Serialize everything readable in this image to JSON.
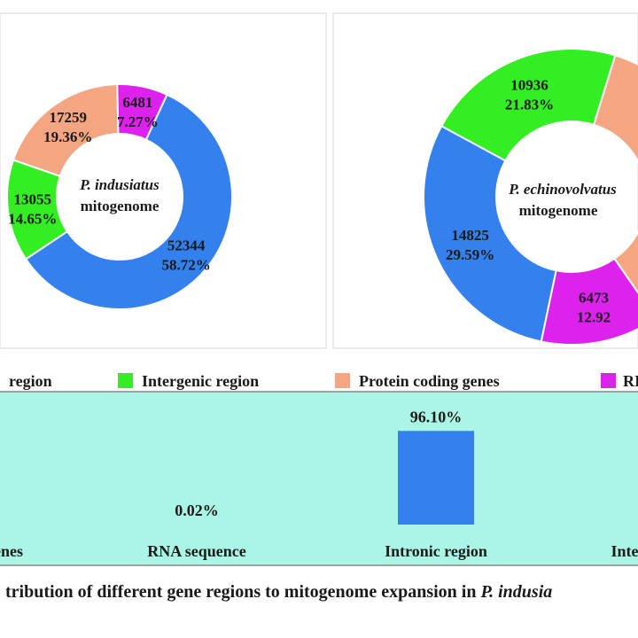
{
  "chart_data": [
    {
      "type": "pie",
      "variant": "donut",
      "center_title": "P. indusiatus",
      "center_subtitle": "mitogenome",
      "slices": [
        {
          "label": "Intergenic region",
          "value": 13055,
          "percent_label": "14.65%",
          "color": "#33ee22"
        },
        {
          "label": "Protein coding genes",
          "value": 17259,
          "percent_label": "19.36%",
          "color": "#f4a582"
        },
        {
          "label": "RNA sequence",
          "value": 6481,
          "percent_label": "7.27%",
          "color": "#dd22ee"
        },
        {
          "label": "Intronic region",
          "value": 52344,
          "percent_label": "58.72%",
          "color": "#3380ee"
        }
      ]
    },
    {
      "type": "pie",
      "variant": "donut",
      "center_title": "P. echinovolvatus",
      "center_subtitle": "mitogenome",
      "slices": [
        {
          "label": "Intergenic region",
          "value": 10936,
          "percent_label": "21.83%",
          "color": "#33ee22"
        },
        {
          "label": "Protein coding genes",
          "value": null,
          "percent_label": "",
          "color": "#f4a582"
        },
        {
          "label": "RNA sequence",
          "value": 6473,
          "percent_label": "12.92",
          "color": "#dd22ee"
        },
        {
          "label": "Intronic region",
          "value": 14825,
          "percent_label": "29.59%",
          "color": "#3380ee"
        }
      ]
    },
    {
      "type": "bar",
      "title": "tribution of different gene regions to mitogenome expansion in ",
      "title_italic": "P. indusia",
      "categories": [
        "genes",
        "RNA sequence",
        "Intronic region",
        "Inte"
      ],
      "values": [
        null,
        0.02,
        96.1,
        null
      ],
      "value_labels": [
        "",
        "0.02%",
        "96.10%",
        ""
      ],
      "ylim": [
        0,
        100
      ],
      "bar_color": "#3380ee",
      "panel_background": "#aaf5e6"
    }
  ],
  "legend": [
    {
      "label": "region",
      "color": "#3380ee"
    },
    {
      "label": "Intergenic region",
      "color": "#33ee22"
    },
    {
      "label": "Protein coding genes",
      "color": "#f4a582"
    },
    {
      "label": "RI",
      "color": "#dd22ee"
    }
  ]
}
